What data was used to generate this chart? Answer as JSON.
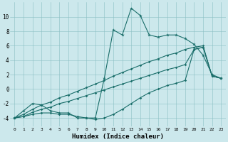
{
  "xlabel": "Humidex (Indice chaleur)",
  "background_color": "#cce8ec",
  "line_color": "#1a6e6a",
  "xlim": [
    -0.5,
    23.5
  ],
  "ylim": [
    -5.2,
    12.0
  ],
  "x": [
    0,
    1,
    2,
    3,
    4,
    5,
    6,
    7,
    8,
    9,
    10,
    11,
    12,
    13,
    14,
    15,
    16,
    17,
    18,
    19,
    20,
    21,
    22,
    23
  ],
  "y_top": [
    -4.0,
    -3.0,
    -2.0,
    -2.2,
    -3.0,
    -3.3,
    -3.3,
    -4.0,
    -4.0,
    -4.0,
    1.5,
    8.2,
    7.5,
    11.2,
    10.2,
    7.5,
    7.2,
    7.5,
    7.5,
    7.0,
    6.2,
    4.7,
    2.0,
    1.5
  ],
  "y_line1": [
    -4.0,
    -3.5,
    -2.8,
    -2.2,
    -1.8,
    -1.2,
    -0.8,
    -0.3,
    0.2,
    0.7,
    1.2,
    1.8,
    2.3,
    2.8,
    3.3,
    3.8,
    4.2,
    4.7,
    5.0,
    5.5,
    5.8,
    6.0,
    1.8,
    1.5
  ],
  "y_line2": [
    -4.0,
    -3.8,
    -3.2,
    -2.8,
    -2.5,
    -2.0,
    -1.7,
    -1.3,
    -0.9,
    -0.5,
    -0.1,
    0.3,
    0.7,
    1.1,
    1.5,
    1.9,
    2.3,
    2.7,
    3.0,
    3.4,
    5.5,
    5.8,
    1.8,
    1.5
  ],
  "y_bot": [
    -4.0,
    -3.8,
    -3.5,
    -3.3,
    -3.3,
    -3.5,
    -3.5,
    -3.8,
    -4.0,
    -4.2,
    -4.0,
    -3.5,
    -2.8,
    -2.0,
    -1.2,
    -0.5,
    0.0,
    0.5,
    0.8,
    1.2,
    5.5,
    5.8,
    1.8,
    1.5
  ],
  "yticks": [
    -4,
    -2,
    0,
    2,
    4,
    6,
    8,
    10
  ],
  "xticks": [
    0,
    1,
    2,
    3,
    4,
    5,
    6,
    7,
    8,
    9,
    10,
    11,
    12,
    13,
    14,
    15,
    16,
    17,
    18,
    19,
    20,
    21,
    22,
    23
  ]
}
